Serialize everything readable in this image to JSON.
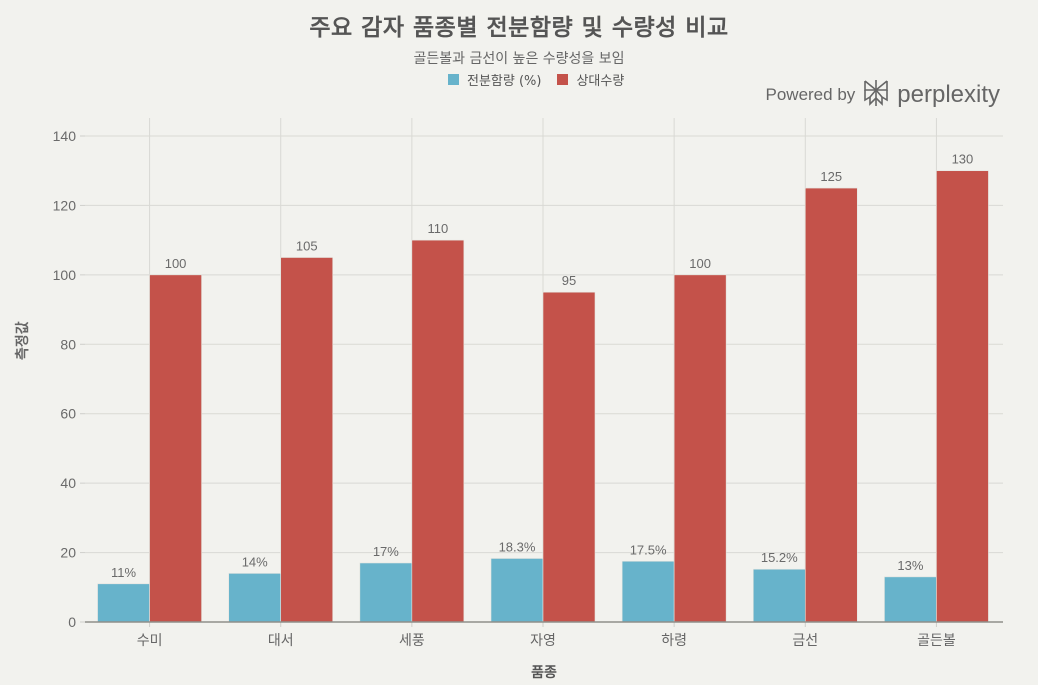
{
  "header": {
    "title": "주요 감자 품종별 전분함량 및 수량성 비교",
    "subtitle": "골든볼과 금선이 높은 수량성을 보임"
  },
  "legend": {
    "items": [
      {
        "label": "전분함량 (%)",
        "color": "#67b3cb"
      },
      {
        "label": "상대수량",
        "color": "#c4524a"
      }
    ]
  },
  "branding": {
    "powered_by": "Powered by",
    "brand": "perplexity"
  },
  "axes": {
    "xlabel": "품종",
    "ylabel": "측정값"
  },
  "chart_data": {
    "type": "bar",
    "title": "주요 감자 품종별 전분함량 및 수량성 비교",
    "subtitle": "골든볼과 금선이 높은 수량성을 보임",
    "xlabel": "품종",
    "ylabel": "측정값",
    "ylim": [
      0,
      140
    ],
    "yticks": [
      0,
      20,
      40,
      60,
      80,
      100,
      120,
      140
    ],
    "grid": true,
    "legend_position": "top-center",
    "categories": [
      "수미",
      "대서",
      "세풍",
      "자영",
      "하령",
      "금선",
      "골든볼"
    ],
    "series": [
      {
        "name": "전분함량 (%)",
        "color": "#67b3cb",
        "values": [
          11,
          14,
          17,
          18.3,
          17.5,
          15.2,
          13
        ],
        "labels": [
          "11%",
          "14%",
          "17%",
          "18.3%",
          "17.5%",
          "15.2%",
          "13%"
        ]
      },
      {
        "name": "상대수량",
        "color": "#c4524a",
        "values": [
          100,
          105,
          110,
          95,
          100,
          125,
          130
        ],
        "labels": [
          "100",
          "105",
          "110",
          "95",
          "100",
          "125",
          "130"
        ]
      }
    ]
  }
}
